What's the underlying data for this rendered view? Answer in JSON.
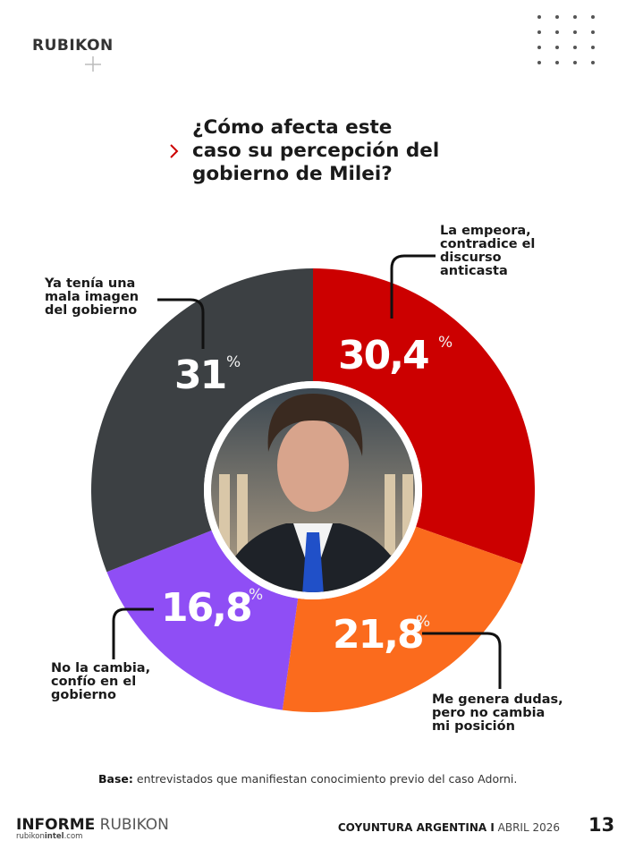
{
  "header": {
    "brand": "RUBIKON"
  },
  "chart_data": {
    "type": "donut",
    "title": "¿Cómo afecta este\ncaso su percepción del\ngobierno de Milei?",
    "categories": [
      "La empeora,\ncontradice el\ndiscurso\nanticasta",
      "Me genera dudas,\npero no cambia\nmi posición",
      "No la cambia,\nconfío en el\ngobierno",
      "Ya tenía una\nmala imagen\ndel gobierno"
    ],
    "values": [
      30.4,
      21.8,
      16.8,
      31
    ],
    "value_labels": [
      "30,4",
      "21,8",
      "16,8",
      "31"
    ],
    "unit": "%",
    "colors": [
      "#cc0000",
      "#fb6b1d",
      "#8f4ef5",
      "#3c4043"
    ]
  },
  "footnote": {
    "label": "Base:",
    "text": "entrevistados que manifiestan conocimiento previo del caso Adorni."
  },
  "footer": {
    "report": "INFORME",
    "brand": "RUBIKON",
    "site_a": "rubikon",
    "site_b": "intel",
    "site_c": ".com",
    "section": "COYUNTURA ARGENTINA I",
    "date": "ABRIL 2026",
    "page": "13"
  }
}
